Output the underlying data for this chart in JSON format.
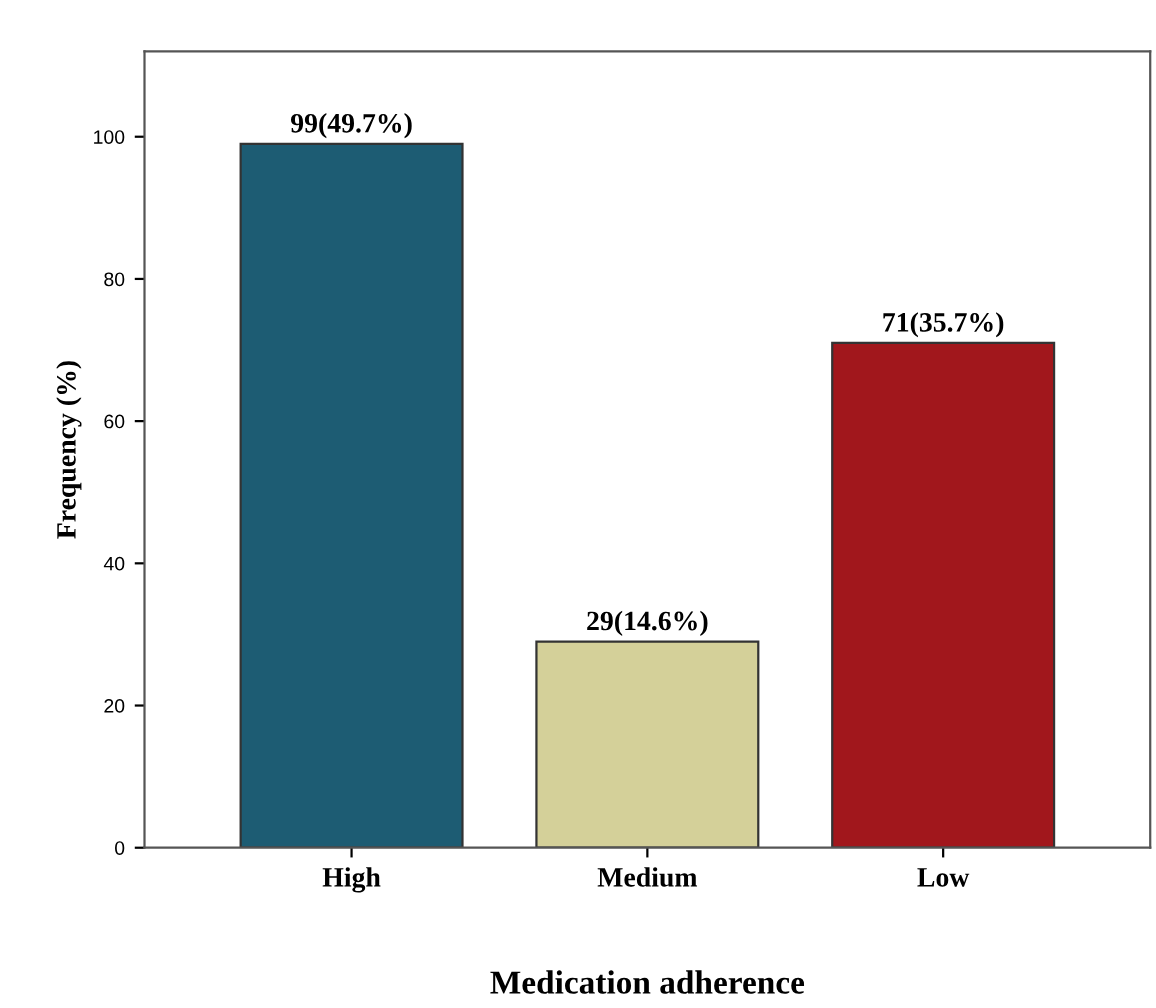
{
  "chart_data": {
    "type": "bar",
    "xlabel": "Medication adherence",
    "ylabel": "Frequency (%)",
    "categories": [
      "High",
      "Medium",
      "Low"
    ],
    "values": [
      99,
      29,
      71
    ],
    "colors": [
      "#1d5c73",
      "#d4d099",
      "#a1171c"
    ],
    "value_labels": [
      "99(49.7%)",
      "29(14.6%)",
      "71(35.7%)"
    ],
    "ylim": [
      0,
      112
    ],
    "yticks": [
      0,
      20,
      40,
      60,
      80,
      100
    ],
    "grid": false,
    "legend": false
  }
}
